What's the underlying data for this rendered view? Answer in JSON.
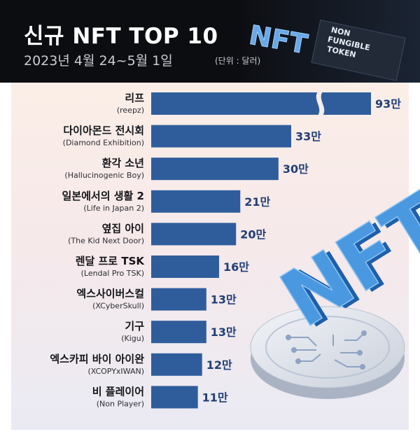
{
  "header": {
    "title": "신규 NFT TOP 10",
    "subtitle": "2023년 4월 24~5월 1일",
    "unit": "(단위 : 달러)",
    "badge_text": "NFT",
    "badge_sub": [
      "NON",
      "FUNGIBLE",
      "TOKEN"
    ]
  },
  "decor": {
    "big_text": "NFT"
  },
  "colors": {
    "bar": "#2f5d9c",
    "value": "#203f77",
    "header_bg": "#0c0d11"
  },
  "chart_data": {
    "type": "bar",
    "orientation": "horizontal",
    "unit": "달러",
    "axis_break_on_first_bar": true,
    "categories": [
      {
        "name": "리프",
        "sub": "(reepz)"
      },
      {
        "name": "다이아몬드 전시회",
        "sub": "(Diamond Exhibition)"
      },
      {
        "name": "환각 소년",
        "sub": "(Hallucinogenic Boy)"
      },
      {
        "name": "일본에서의 생활 2",
        "sub": "(Life in Japan 2)"
      },
      {
        "name": "옆집 아이",
        "sub": "(The Kid Next Door)"
      },
      {
        "name": "렌달 프로 TSK",
        "sub": "(Lendal Pro TSK)"
      },
      {
        "name": "엑스사이버스컬",
        "sub": "(XCyberSkull)"
      },
      {
        "name": "기구",
        "sub": "(Kigu)"
      },
      {
        "name": "엑스카피 바이 아이완",
        "sub": "(XCOPYxIWAN)"
      },
      {
        "name": "비 플레이어",
        "sub": "(Non Player)"
      }
    ],
    "values": [
      930000,
      330000,
      300000,
      210000,
      200000,
      160000,
      130000,
      130000,
      120000,
      110000
    ],
    "value_labels": [
      "93만",
      "33만",
      "30만",
      "21만",
      "20만",
      "16만",
      "13만",
      "13만",
      "12만",
      "11만"
    ]
  }
}
